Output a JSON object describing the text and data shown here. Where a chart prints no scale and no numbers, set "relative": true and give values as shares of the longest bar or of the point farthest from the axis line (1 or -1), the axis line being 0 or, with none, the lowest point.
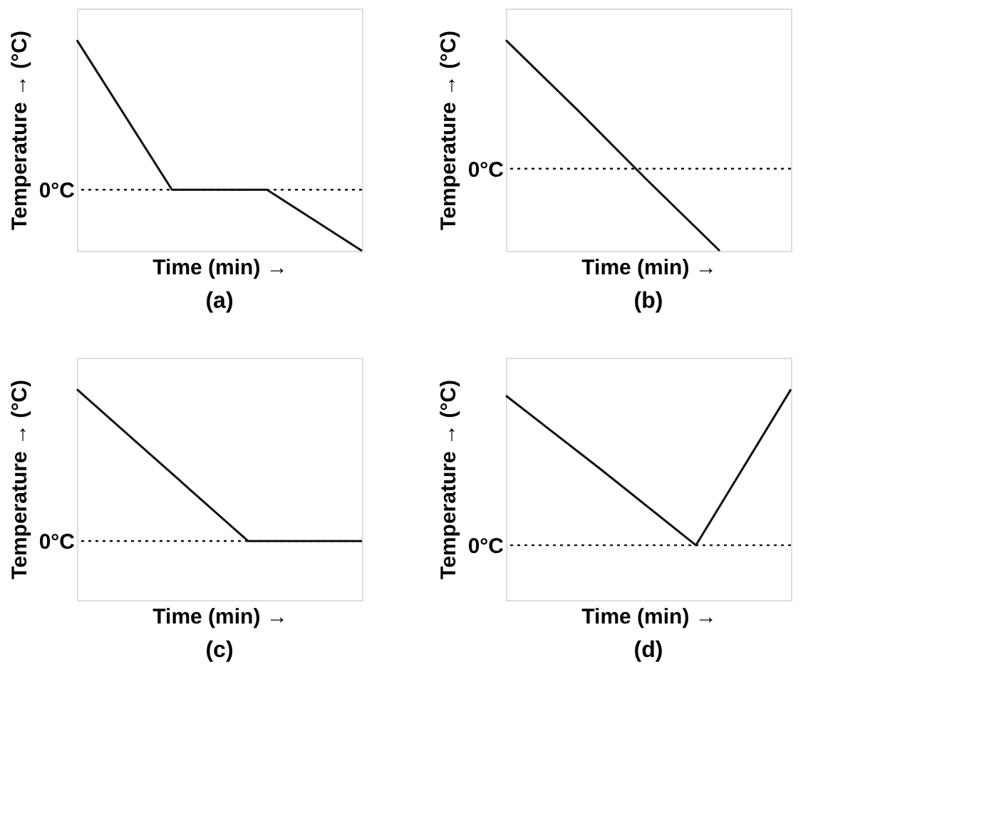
{
  "chart_data": [
    {
      "type": "line",
      "relative": true,
      "title": "(a)",
      "xlabel": "Time (min) →",
      "ylabel": "Temperature → (°C)",
      "categories": [
        null,
        null,
        null,
        null
      ],
      "tick_labels": false,
      "grid": false,
      "marker": "none",
      "line_style": "solid",
      "series": [
        {
          "color": "#111111",
          "values": [
            1,
            0.29,
            0.29,
            0
          ]
        }
      ],
      "ref_lines": [
        {
          "axis": "y",
          "value": 0.29,
          "label": "0°C",
          "line_style": "dotted",
          "color": "#111111"
        }
      ]
    },
    {
      "type": "line",
      "relative": true,
      "title": "(b)",
      "xlabel": "Time (min) →",
      "ylabel": "Temperature → (°C)",
      "categories": [
        null,
        null,
        null,
        null,
        null
      ],
      "tick_labels": false,
      "grid": false,
      "marker": "none",
      "line_style": "solid",
      "series": [
        {
          "color": "#111111",
          "values": [
            1,
            0.67,
            0.33,
            0,
            null
          ]
        }
      ],
      "ref_lines": [
        {
          "axis": "y",
          "value": 0.39,
          "label": "0°C",
          "line_style": "dotted",
          "color": "#111111"
        }
      ]
    },
    {
      "type": "line",
      "relative": true,
      "title": "(c)",
      "xlabel": "Time (min) →",
      "ylabel": "Temperature → (°C)",
      "categories": [
        null,
        null,
        null,
        null,
        null,
        null
      ],
      "tick_labels": false,
      "grid": false,
      "marker": "none",
      "line_style": "solid",
      "series": [
        {
          "color": "#111111",
          "values": [
            1,
            0.76,
            0.52,
            0.28,
            0.28,
            0.28
          ]
        }
      ],
      "ref_lines": [
        {
          "axis": "y",
          "value": 0.28,
          "label": "0°C",
          "line_style": "dotted",
          "color": "#111111"
        }
      ]
    },
    {
      "type": "line",
      "relative": true,
      "title": "(d)",
      "xlabel": "Time (min) →",
      "ylabel": "Temperature → (°C)",
      "categories": [
        null,
        null,
        null,
        null
      ],
      "tick_labels": false,
      "grid": false,
      "marker": "none",
      "line_style": "solid",
      "series": [
        {
          "color": "#111111",
          "values": [
            0.97,
            0.62,
            0.26,
            1
          ]
        }
      ],
      "ref_lines": [
        {
          "axis": "y",
          "value": 0.26,
          "label": "0°C",
          "line_style": "dotted",
          "color": "#111111"
        }
      ]
    }
  ]
}
